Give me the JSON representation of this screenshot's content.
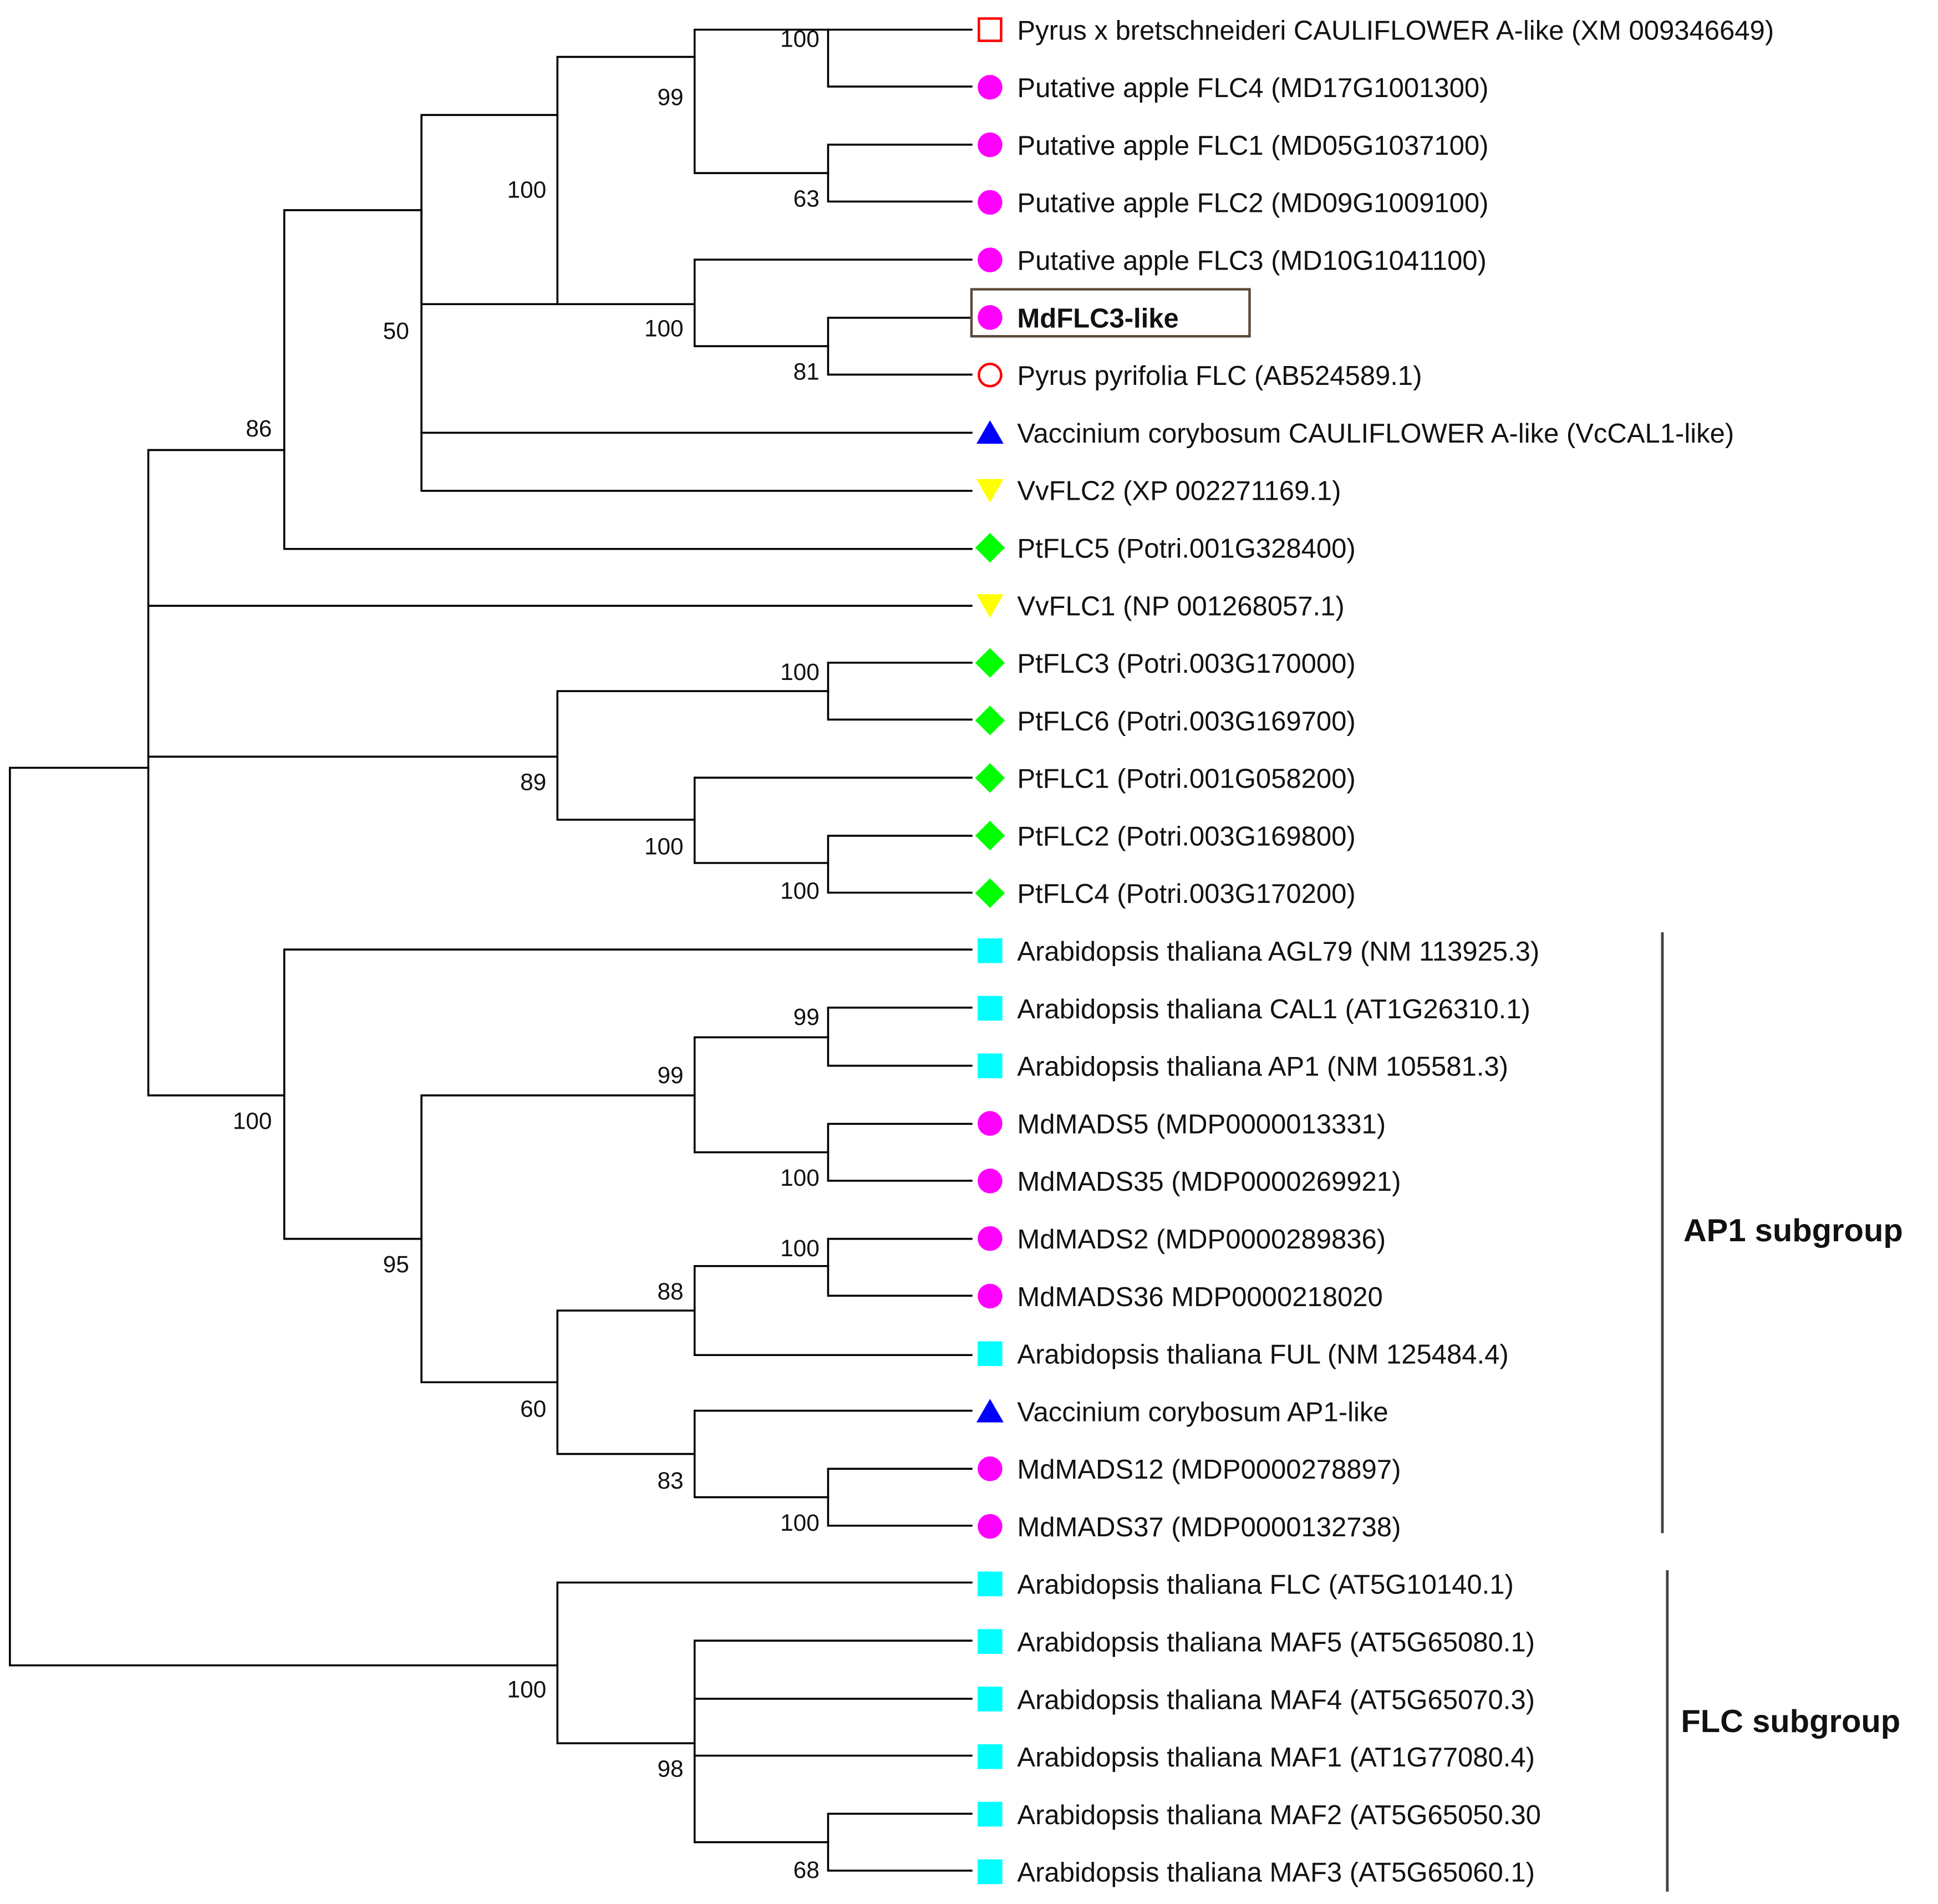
{
  "legend_colors": {
    "apple": "#ff00ff",
    "pear": "#ff0000",
    "blueberry": "#0000ff",
    "grape": "#ffff00",
    "poplar": "#00ff00",
    "arabidopsis": "#00ffff"
  },
  "leaves": [
    {
      "label": "Pyrus x bretschneideri CAULIFLOWER A-like (XM 009346649)",
      "marker": "open-square",
      "color": "#ff0000",
      "bold": false
    },
    {
      "label": "Putative apple FLC4 (MD17G1001300)",
      "marker": "circle",
      "color": "#ff00ff",
      "bold": false
    },
    {
      "label": "Putative apple FLC1 (MD05G1037100)",
      "marker": "circle",
      "color": "#ff00ff",
      "bold": false
    },
    {
      "label": "Putative apple FLC2 (MD09G1009100)",
      "marker": "circle",
      "color": "#ff00ff",
      "bold": false
    },
    {
      "label": "Putative apple FLC3 (MD10G1041100)",
      "marker": "circle",
      "color": "#ff00ff",
      "bold": false
    },
    {
      "label": "MdFLC3-like",
      "marker": "circle",
      "color": "#ff00ff",
      "bold": true
    },
    {
      "label": "Pyrus pyrifolia FLC (AB524589.1)",
      "marker": "open-circle",
      "color": "#ff0000",
      "bold": false
    },
    {
      "label": "Vaccinium corybosum CAULIFLOWER A-like (VcCAL1-like)",
      "marker": "triangle-up",
      "color": "#0000ff",
      "bold": false
    },
    {
      "label": "VvFLC2 (XP 002271169.1)",
      "marker": "triangle-down",
      "color": "#ffff00",
      "bold": false
    },
    {
      "label": "PtFLC5 (Potri.001G328400)",
      "marker": "diamond",
      "color": "#00ff00",
      "bold": false
    },
    {
      "label": "VvFLC1 (NP 001268057.1)",
      "marker": "triangle-down",
      "color": "#ffff00",
      "bold": false
    },
    {
      "label": "PtFLC3 (Potri.003G170000)",
      "marker": "diamond",
      "color": "#00ff00",
      "bold": false
    },
    {
      "label": "PtFLC6 (Potri.003G169700)",
      "marker": "diamond",
      "color": "#00ff00",
      "bold": false
    },
    {
      "label": "PtFLC1 (Potri.001G058200)",
      "marker": "diamond",
      "color": "#00ff00",
      "bold": false
    },
    {
      "label": "PtFLC2 (Potri.003G169800)",
      "marker": "diamond",
      "color": "#00ff00",
      "bold": false
    },
    {
      "label": "PtFLC4 (Potri.003G170200)",
      "marker": "diamond",
      "color": "#00ff00",
      "bold": false
    },
    {
      "label": "Arabidopsis thaliana AGL79 (NM 113925.3)",
      "marker": "square",
      "color": "#00ffff",
      "bold": false
    },
    {
      "label": "Arabidopsis thaliana CAL1 (AT1G26310.1)",
      "marker": "square",
      "color": "#00ffff",
      "bold": false
    },
    {
      "label": "Arabidopsis thaliana AP1 (NM 105581.3)",
      "marker": "square",
      "color": "#00ffff",
      "bold": false
    },
    {
      "label": "MdMADS5 (MDP0000013331)",
      "marker": "circle",
      "color": "#ff00ff",
      "bold": false
    },
    {
      "label": "MdMADS35 (MDP0000269921)",
      "marker": "circle",
      "color": "#ff00ff",
      "bold": false
    },
    {
      "label": "MdMADS2 (MDP0000289836)",
      "marker": "circle",
      "color": "#ff00ff",
      "bold": false
    },
    {
      "label": "MdMADS36 MDP0000218020",
      "marker": "circle",
      "color": "#ff00ff",
      "bold": false
    },
    {
      "label": "Arabidopsis thaliana FUL (NM 125484.4)",
      "marker": "square",
      "color": "#00ffff",
      "bold": false
    },
    {
      "label": "Vaccinium corybosum AP1-like",
      "marker": "triangle-up",
      "color": "#0000ff",
      "bold": false
    },
    {
      "label": "MdMADS12 (MDP0000278897)",
      "marker": "circle",
      "color": "#ff00ff",
      "bold": false
    },
    {
      "label": "MdMADS37 (MDP0000132738)",
      "marker": "circle",
      "color": "#ff00ff",
      "bold": false
    },
    {
      "label": "Arabidopsis thaliana FLC (AT5G10140.1)",
      "marker": "square",
      "color": "#00ffff",
      "bold": false
    },
    {
      "label": "Arabidopsis thaliana MAF5 (AT5G65080.1)",
      "marker": "square",
      "color": "#00ffff",
      "bold": false
    },
    {
      "label": "Arabidopsis thaliana MAF4 (AT5G65070.3)",
      "marker": "square",
      "color": "#00ffff",
      "bold": false
    },
    {
      "label": "Arabidopsis thaliana MAF1 (AT1G77080.4)",
      "marker": "square",
      "color": "#00ffff",
      "bold": false
    },
    {
      "label": "Arabidopsis thaliana MAF2 (AT5G65050.30",
      "marker": "square",
      "color": "#00ffff",
      "bold": false
    },
    {
      "label": "Arabidopsis thaliana MAF3 (AT5G65060.1)",
      "marker": "square",
      "color": "#00ffff",
      "bold": false
    }
  ],
  "bootstrap": {
    "n_pyrus_apple4": "100",
    "n_apple1_2": "63",
    "n_top_four": "99",
    "n_md_pyrifolia": "81",
    "n_flc3_group": "100",
    "n_rosaceae": "100",
    "n_with_vaccinium_vitis": "50",
    "n_with_ptflc5": "86",
    "n_ptflc3_6": "100",
    "n_ptflc2_4": "100",
    "n_ptflc1_2_4": "100",
    "n_poplar_group": "89",
    "n_cal1_ap1": "99",
    "n_mads5_35": "100",
    "n_cal1_ap1_mads": "99",
    "n_mads2_36": "100",
    "n_mads_ful": "88",
    "n_mads12_37": "100",
    "n_vacc_mads": "83",
    "n_ful_vacc": "60",
    "n_ap1_core": "95",
    "n_ap1_all": "100",
    "n_maf2_3": "68",
    "n_maf_group": "98",
    "n_flc_group": "100"
  },
  "groups": {
    "ap1": "AP1 subgroup",
    "flc": "FLC subgroup"
  }
}
